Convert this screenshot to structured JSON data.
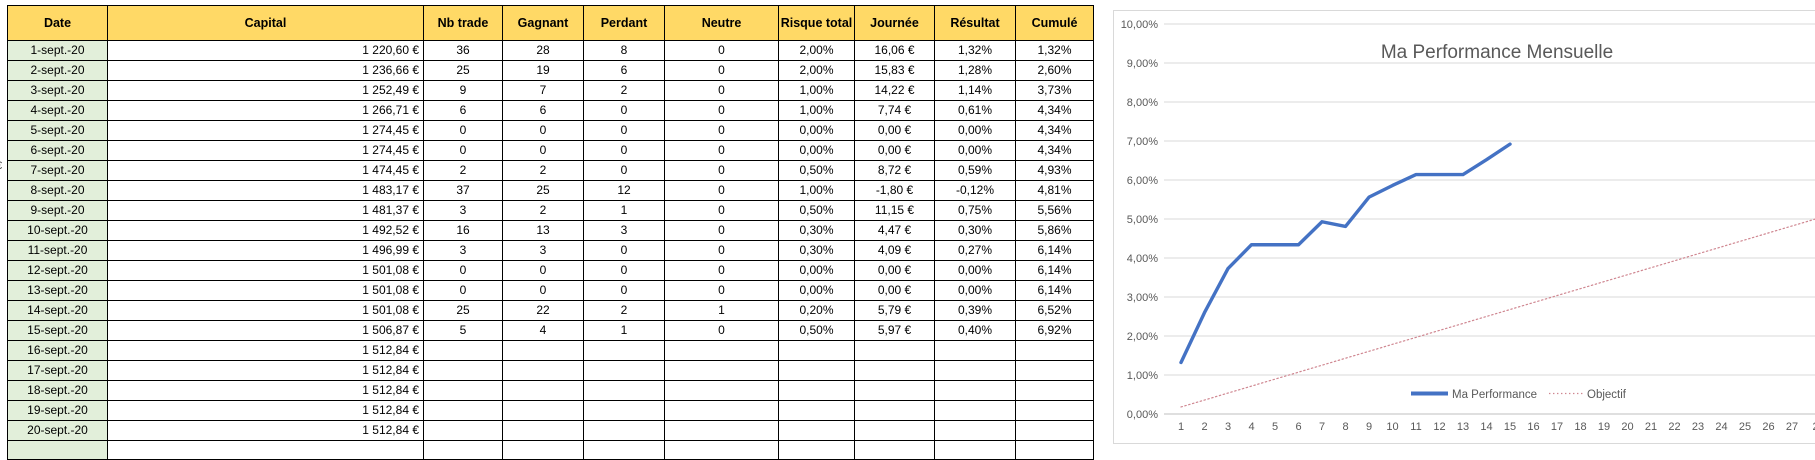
{
  "window": {
    "background": "#ffffff"
  },
  "clipped_left_axis_label": "€",
  "table": {
    "styles": {
      "header_bg": "#FFD966",
      "date_bg": "#E2EFDA",
      "border_color": "#000000"
    },
    "columns": [
      "Date",
      "Capital",
      "Nb trade",
      "Gagnant",
      "Perdant",
      "Neutre",
      "Risque total",
      "Journée",
      "Résultat",
      "Cumulé"
    ],
    "rows": [
      [
        "1-sept.-20",
        "1 220,60 €",
        "36",
        "28",
        "8",
        "0",
        "2,00%",
        "16,06 €",
        "1,32%",
        "1,32%"
      ],
      [
        "2-sept.-20",
        "1 236,66 €",
        "25",
        "19",
        "6",
        "0",
        "2,00%",
        "15,83 €",
        "1,28%",
        "2,60%"
      ],
      [
        "3-sept.-20",
        "1 252,49 €",
        "9",
        "7",
        "2",
        "0",
        "1,00%",
        "14,22 €",
        "1,14%",
        "3,73%"
      ],
      [
        "4-sept.-20",
        "1 266,71 €",
        "6",
        "6",
        "0",
        "0",
        "1,00%",
        "7,74 €",
        "0,61%",
        "4,34%"
      ],
      [
        "5-sept.-20",
        "1 274,45 €",
        "0",
        "0",
        "0",
        "0",
        "0,00%",
        "0,00 €",
        "0,00%",
        "4,34%"
      ],
      [
        "6-sept.-20",
        "1 274,45 €",
        "0",
        "0",
        "0",
        "0",
        "0,00%",
        "0,00 €",
        "0,00%",
        "4,34%"
      ],
      [
        "7-sept.-20",
        "1 474,45 €",
        "2",
        "2",
        "0",
        "0",
        "0,50%",
        "8,72 €",
        "0,59%",
        "4,93%"
      ],
      [
        "8-sept.-20",
        "1 483,17 €",
        "37",
        "25",
        "12",
        "0",
        "1,00%",
        "-1,80 €",
        "-0,12%",
        "4,81%"
      ],
      [
        "9-sept.-20",
        "1 481,37 €",
        "3",
        "2",
        "1",
        "0",
        "0,50%",
        "11,15 €",
        "0,75%",
        "5,56%"
      ],
      [
        "10-sept.-20",
        "1 492,52 €",
        "16",
        "13",
        "3",
        "0",
        "0,30%",
        "4,47 €",
        "0,30%",
        "5,86%"
      ],
      [
        "11-sept.-20",
        "1 496,99 €",
        "3",
        "3",
        "0",
        "0",
        "0,30%",
        "4,09 €",
        "0,27%",
        "6,14%"
      ],
      [
        "12-sept.-20",
        "1 501,08 €",
        "0",
        "0",
        "0",
        "0",
        "0,00%",
        "0,00 €",
        "0,00%",
        "6,14%"
      ],
      [
        "13-sept.-20",
        "1 501,08 €",
        "0",
        "0",
        "0",
        "0",
        "0,00%",
        "0,00 €",
        "0,00%",
        "6,14%"
      ],
      [
        "14-sept.-20",
        "1 501,08 €",
        "25",
        "22",
        "2",
        "1",
        "0,20%",
        "5,79 €",
        "0,39%",
        "6,52%"
      ],
      [
        "15-sept.-20",
        "1 506,87 €",
        "5",
        "4",
        "1",
        "0",
        "0,50%",
        "5,97 €",
        "0,40%",
        "6,92%"
      ],
      [
        "16-sept.-20",
        "1 512,84 €",
        "",
        "",
        "",
        "",
        "",
        "",
        "",
        ""
      ],
      [
        "17-sept.-20",
        "1 512,84 €",
        "",
        "",
        "",
        "",
        "",
        "",
        "",
        ""
      ],
      [
        "18-sept.-20",
        "1 512,84 €",
        "",
        "",
        "",
        "",
        "",
        "",
        "",
        ""
      ],
      [
        "19-sept.-20",
        "1 512,84 €",
        "",
        "",
        "",
        "",
        "",
        "",
        "",
        ""
      ],
      [
        "20-sept.-20",
        "1 512,84 €",
        "",
        "",
        "",
        "",
        "",
        "",
        "",
        ""
      ],
      [
        "",
        "",
        "",
        "",
        "",
        "",
        "",
        "",
        "",
        ""
      ]
    ]
  },
  "chart_data": {
    "type": "line",
    "title": "Ma Performance Mensuelle",
    "xlabel": "",
    "ylabel": "",
    "ylim": [
      0,
      10
    ],
    "grid": true,
    "legend_position": "inside-bottom-center",
    "ytick_labels": [
      "0,00%",
      "1,00%",
      "2,00%",
      "3,00%",
      "4,00%",
      "5,00%",
      "6,00%",
      "7,00%",
      "8,00%",
      "9,00%",
      "10,00%"
    ],
    "xtick_labels": [
      "1",
      "2",
      "3",
      "4",
      "5",
      "6",
      "7",
      "8",
      "9",
      "10",
      "11",
      "12",
      "13",
      "14",
      "15",
      "16",
      "17",
      "18",
      "19",
      "20",
      "21",
      "22",
      "23",
      "24",
      "25",
      "26",
      "27"
    ],
    "clipped_xtick": "2",
    "colors": {
      "grid": "#d9d9d9",
      "axis_line": "#bfbfbf",
      "text": "#595959"
    },
    "series": [
      {
        "name": "Ma Performance",
        "color": "#4472C4",
        "style": "solid",
        "x": [
          1,
          2,
          3,
          4,
          5,
          6,
          7,
          8,
          9,
          10,
          11,
          12,
          13,
          14,
          15
        ],
        "values": [
          1.32,
          2.6,
          3.73,
          4.34,
          4.34,
          4.34,
          4.93,
          4.81,
          5.56,
          5.86,
          6.14,
          6.14,
          6.14,
          6.52,
          6.92
        ]
      },
      {
        "name": "Objectif",
        "color": "#cf8690",
        "style": "dotted",
        "x": [
          1,
          28
        ],
        "values": [
          0.18,
          5.0
        ]
      }
    ]
  }
}
